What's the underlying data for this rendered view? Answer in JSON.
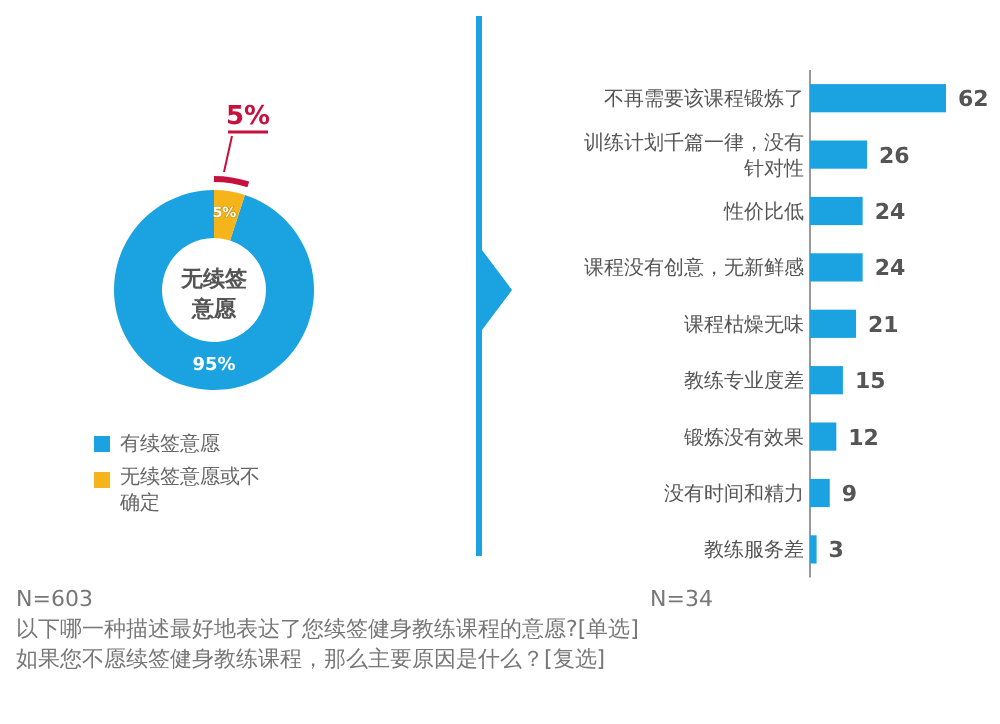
{
  "chart_data": [
    {
      "type": "donut",
      "title": "无续签意愿",
      "categories": [
        "有续签意愿",
        "无续签意愿或不确定"
      ],
      "values": [
        95,
        5
      ],
      "colors": [
        "#1aa3e0",
        "#f5b419"
      ],
      "value_labels": [
        "95%",
        "5%"
      ],
      "legend": "bottom",
      "annotations": [
        "5%",
        "N=603",
        "以下哪一种描述最好地表达了您续签健身教练课程的意愿?[单选]"
      ]
    },
    {
      "type": "bar",
      "orientation": "horizontal",
      "categories": [
        "不再需要该课程锻炼了",
        "训练计划千篇一律，没有针对性",
        "性价比低",
        "课程没有创意，无新鲜感",
        "课程枯燥无味",
        "教练专业度差",
        "锻炼没有效果",
        "没有时间和精力",
        "教练服务差"
      ],
      "series": [
        {
          "color": "#1aa3e0",
          "values": [
            62,
            26,
            24,
            24,
            21,
            15,
            12,
            9,
            3
          ]
        }
      ],
      "data_labels": true,
      "annotations": [
        "N=34",
        "如果您不愿续签健身教练课程，那么主要原因是什么？[复选]"
      ]
    }
  ]
}
